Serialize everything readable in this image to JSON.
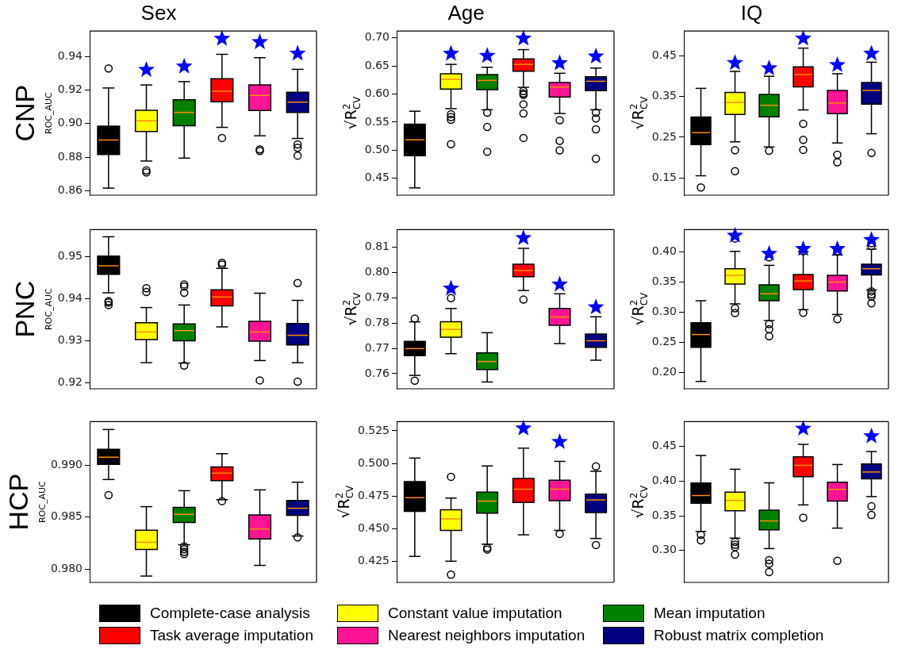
{
  "chart_data": [
    {
      "type": "box",
      "title": "Sex",
      "ylabel": "ROC_AUC",
      "annotations": [
        "CNP"
      ],
      "categories": [
        null,
        null,
        null,
        null,
        null,
        null
      ],
      "tick_labels": "y",
      "ylim": [
        0.8575,
        0.955
      ],
      "yticks": [
        {
          "value": 0.86,
          "label": "0.86"
        },
        {
          "value": 0.88,
          "label": "0.88"
        },
        {
          "value": 0.9,
          "label": "0.90"
        },
        {
          "value": 0.92,
          "label": "0.92"
        },
        {
          "value": 0.94,
          "label": "0.94"
        }
      ],
      "series": [
        {
          "type": "box",
          "color": "#000000",
          "boxes": [
            {
              "low": 0.8617,
              "q1": 0.8817,
              "median": 0.8903,
              "q3": 0.8985,
              "high": 0.9212,
              "outliers": [
                0.9328
              ]
            },
            null,
            null,
            null,
            null,
            null
          ]
        },
        {
          "type": "box",
          "color": "#ffff00",
          "boxes": [
            null,
            {
              "low": 0.8778,
              "q1": 0.8953,
              "median": 0.9017,
              "q3": 0.908,
              "high": 0.923,
              "outliers": [
                0.8722,
                0.871
              ]
            },
            null,
            null,
            null,
            null
          ]
        },
        {
          "type": "box",
          "color": "#008000",
          "boxes": [
            null,
            null,
            {
              "low": 0.8795,
              "q1": 0.8988,
              "median": 0.9067,
              "q3": 0.9142,
              "high": 0.925
            },
            null,
            null,
            null
          ]
        },
        {
          "type": "box",
          "color": "#ff0000",
          "boxes": [
            null,
            null,
            null,
            {
              "low": 0.8978,
              "q1": 0.913,
              "median": 0.9193,
              "q3": 0.9267,
              "high": 0.9412,
              "outliers": [
                0.8915
              ]
            },
            null,
            null
          ]
        },
        {
          "type": "box",
          "color": "#ff1493",
          "boxes": [
            null,
            null,
            null,
            null,
            {
              "low": 0.8928,
              "q1": 0.9078,
              "median": 0.9168,
              "q3": 0.923,
              "high": 0.9392,
              "outliers": [
                0.8847,
                0.8838
              ]
            },
            null
          ]
        },
        {
          "type": "box",
          "color": "#000080",
          "boxes": [
            null,
            null,
            null,
            null,
            null,
            {
              "low": 0.8912,
              "q1": 0.9067,
              "median": 0.9128,
              "q3": 0.9187,
              "high": 0.9323,
              "outliers": [
                0.8877,
                0.8857,
                0.881
              ]
            }
          ]
        },
        {
          "type": "scatter",
          "marker": "star",
          "color": "#0000ff",
          "values": [
            null,
            0.932,
            0.934,
            0.9505,
            0.9485,
            0.9417
          ]
        }
      ]
    },
    {
      "type": "box",
      "title": "Age",
      "ylabel": "√R$^{2}$$_{CV}$",
      "categories": [
        null,
        null,
        null,
        null,
        null,
        null
      ],
      "tick_labels": "y",
      "ylim": [
        0.42,
        0.712
      ],
      "yticks": [
        {
          "value": 0.45,
          "label": "0.45"
        },
        {
          "value": 0.5,
          "label": "0.50"
        },
        {
          "value": 0.55,
          "label": "0.55"
        },
        {
          "value": 0.6,
          "label": "0.60"
        },
        {
          "value": 0.65,
          "label": "0.65"
        },
        {
          "value": 0.7,
          "label": "0.70"
        }
      ],
      "series": [
        {
          "type": "box",
          "color": "#000000",
          "boxes": [
            {
              "low": 0.433,
              "q1": 0.4904,
              "median": 0.5186,
              "q3": 0.5465,
              "high": 0.5694
            },
            null,
            null,
            null,
            null,
            null
          ]
        },
        {
          "type": "box",
          "color": "#ffff00",
          "boxes": [
            null,
            {
              "low": 0.574,
              "q1": 0.6089,
              "median": 0.6263,
              "q3": 0.636,
              "high": 0.6528,
              "outliers": [
                0.5642,
                0.5592,
                0.5541,
                0.5106
              ]
            },
            null,
            null,
            null,
            null
          ]
        },
        {
          "type": "box",
          "color": "#008000",
          "boxes": [
            null,
            null,
            {
              "low": 0.572,
              "q1": 0.6078,
              "median": 0.6242,
              "q3": 0.6345,
              "high": 0.6477,
              "outliers": [
                0.5669,
                0.5413,
                0.4972
              ]
            },
            null,
            null,
            null
          ]
        },
        {
          "type": "box",
          "color": "#ff0000",
          "boxes": [
            null,
            null,
            null,
            {
              "low": 0.6119,
              "q1": 0.6406,
              "median": 0.6528,
              "q3": 0.6626,
              "high": 0.679,
              "outliers": [
                0.6053,
                0.6011,
                0.5986,
                0.5818,
                0.5654,
                0.5218
              ]
            },
            null,
            null
          ]
        },
        {
          "type": "box",
          "color": "#ff1493",
          "boxes": [
            null,
            null,
            null,
            null,
            {
              "low": 0.5654,
              "q1": 0.5946,
              "median": 0.6124,
              "q3": 0.6206,
              "high": 0.637,
              "outliers": [
                0.5535,
                0.5167,
                0.4999
              ]
            },
            null
          ]
        },
        {
          "type": "box",
          "color": "#000080",
          "boxes": [
            null,
            null,
            null,
            null,
            null,
            {
              "low": 0.572,
              "q1": 0.6062,
              "median": 0.6227,
              "q3": 0.6309,
              "high": 0.6462,
              "outliers": [
                0.5669,
                0.5566,
                0.5371,
                0.485
              ]
            }
          ]
        },
        {
          "type": "scatter",
          "marker": "star",
          "color": "#0000ff",
          "values": [
            null,
            0.672,
            0.668,
            0.699,
            0.655,
            0.667
          ]
        }
      ]
    },
    {
      "type": "box",
      "title": "IQ",
      "ylabel": "√R$^{2}$$_{CV}$",
      "categories": [
        null,
        null,
        null,
        null,
        null,
        null
      ],
      "tick_labels": "y",
      "ylim": [
        0.108,
        0.51
      ],
      "yticks": [
        {
          "value": 0.15,
          "label": "0.15"
        },
        {
          "value": 0.25,
          "label": "0.25"
        },
        {
          "value": 0.35,
          "label": "0.35"
        },
        {
          "value": 0.45,
          "label": "0.45"
        }
      ],
      "series": [
        {
          "type": "box",
          "color": "#000000",
          "boxes": [
            {
              "low": 0.1556,
              "q1": 0.2317,
              "median": 0.2613,
              "q3": 0.2993,
              "high": 0.3697,
              "outliers": [
                0.1268
              ]
            },
            null,
            null,
            null,
            null,
            null
          ]
        },
        {
          "type": "box",
          "color": "#ffff00",
          "boxes": [
            null,
            {
              "low": 0.2387,
              "q1": 0.3056,
              "median": 0.3352,
              "q3": 0.3599,
              "high": 0.4113,
              "outliers": [
                0.2183,
                0.1669
              ]
            },
            null,
            null,
            null,
            null
          ]
        },
        {
          "type": "box",
          "color": "#008000",
          "boxes": [
            null,
            null,
            {
              "low": 0.2261,
              "q1": 0.3,
              "median": 0.3282,
              "q3": 0.3549,
              "high": 0.3993,
              "outliers": [
                0.2169
              ]
            },
            null,
            null,
            null
          ]
        },
        {
          "type": "box",
          "color": "#ff0000",
          "boxes": [
            null,
            null,
            null,
            {
              "low": 0.3169,
              "q1": 0.3732,
              "median": 0.4035,
              "q3": 0.4225,
              "high": 0.4683,
              "outliers": [
                0.2831,
                0.2437,
                0.219
              ]
            },
            null,
            null
          ]
        },
        {
          "type": "box",
          "color": "#ff1493",
          "boxes": [
            null,
            null,
            null,
            null,
            {
              "low": 0.2359,
              "q1": 0.3077,
              "median": 0.3338,
              "q3": 0.3648,
              "high": 0.4056,
              "outliers": [
                0.207,
                0.1887
              ]
            },
            null
          ]
        },
        {
          "type": "box",
          "color": "#000080",
          "boxes": [
            null,
            null,
            null,
            null,
            null,
            {
              "low": 0.2585,
              "q1": 0.331,
              "median": 0.3648,
              "q3": 0.3838,
              "high": 0.4338,
              "outliers": [
                0.2113
              ]
            }
          ]
        },
        {
          "type": "scatter",
          "marker": "star",
          "color": "#0000ff",
          "values": [
            null,
            0.432,
            0.419,
            0.492,
            0.427,
            0.455
          ]
        }
      ]
    },
    {
      "type": "box",
      "ylabel": "ROC_AUC",
      "annotations": [
        "PNC"
      ],
      "categories": [
        null,
        null,
        null,
        null,
        null,
        null
      ],
      "tick_labels": "y",
      "ylim": [
        0.9186,
        0.9564
      ],
      "yticks": [
        {
          "value": 0.92,
          "label": "0.92"
        },
        {
          "value": 0.93,
          "label": "0.93"
        },
        {
          "value": 0.94,
          "label": "0.94"
        },
        {
          "value": 0.95,
          "label": "0.95"
        }
      ],
      "series": [
        {
          "type": "box",
          "color": "#000000",
          "boxes": [
            {
              "low": 0.9414,
              "q1": 0.9458,
              "median": 0.9478,
              "q3": 0.9501,
              "high": 0.9547,
              "outliers": [
                0.9394,
                0.9391,
                0.9385
              ]
            },
            null,
            null,
            null,
            null,
            null
          ]
        },
        {
          "type": "box",
          "color": "#ffff00",
          "boxes": [
            null,
            {
              "low": 0.9248,
              "q1": 0.9303,
              "median": 0.9321,
              "q3": 0.9343,
              "high": 0.9379,
              "outliers": [
                0.9425,
                0.9416
              ]
            },
            null,
            null,
            null,
            null
          ]
        },
        {
          "type": "box",
          "color": "#008000",
          "boxes": [
            null,
            null,
            {
              "low": 0.9247,
              "q1": 0.93,
              "median": 0.9324,
              "q3": 0.934,
              "high": 0.9385,
              "outliers": [
                0.9434,
                0.9429,
                0.9414,
                0.9241
              ]
            },
            null,
            null,
            null
          ]
        },
        {
          "type": "box",
          "color": "#ff0000",
          "boxes": [
            null,
            null,
            null,
            {
              "low": 0.9333,
              "q1": 0.9383,
              "median": 0.9404,
              "q3": 0.9421,
              "high": 0.9472,
              "outliers": [
                0.9485,
                0.9481
              ]
            },
            null,
            null
          ]
        },
        {
          "type": "box",
          "color": "#ff1493",
          "boxes": [
            null,
            null,
            null,
            null,
            {
              "low": 0.9253,
              "q1": 0.9299,
              "median": 0.9321,
              "q3": 0.9346,
              "high": 0.9413,
              "outliers": [
                0.9206
              ]
            },
            null
          ]
        },
        {
          "type": "box",
          "color": "#000080",
          "boxes": [
            null,
            null,
            null,
            null,
            null,
            {
              "low": 0.9248,
              "q1": 0.929,
              "median": 0.9313,
              "q3": 0.9341,
              "high": 0.9396,
              "outliers": [
                0.9437,
                0.9203
              ]
            }
          ]
        }
      ]
    },
    {
      "type": "box",
      "ylabel": "√R$^{2}$$_{CV}$",
      "categories": [
        null,
        null,
        null,
        null,
        null,
        null
      ],
      "tick_labels": "y",
      "ylim": [
        0.754,
        0.817
      ],
      "yticks": [
        {
          "value": 0.76,
          "label": "0.76"
        },
        {
          "value": 0.77,
          "label": "0.77"
        },
        {
          "value": 0.78,
          "label": "0.78"
        },
        {
          "value": 0.79,
          "label": "0.79"
        },
        {
          "value": 0.8,
          "label": "0.80"
        },
        {
          "value": 0.81,
          "label": "0.81"
        }
      ],
      "series": [
        {
          "type": "box",
          "color": "#000000",
          "boxes": [
            {
              "low": 0.7593,
              "q1": 0.7671,
              "median": 0.7699,
              "q3": 0.7728,
              "high": 0.7805,
              "outliers": [
                0.7818,
                0.7572
              ]
            },
            null,
            null,
            null,
            null,
            null
          ]
        },
        {
          "type": "box",
          "color": "#ffff00",
          "boxes": [
            null,
            {
              "low": 0.7679,
              "q1": 0.7744,
              "median": 0.7775,
              "q3": 0.7805,
              "high": 0.7858,
              "outliers": [
                0.7899
              ]
            },
            null,
            null,
            null,
            null
          ]
        },
        {
          "type": "box",
          "color": "#008000",
          "boxes": [
            null,
            null,
            {
              "low": 0.7567,
              "q1": 0.7616,
              "median": 0.7648,
              "q3": 0.7682,
              "high": 0.7762
            },
            null,
            null,
            null
          ]
        },
        {
          "type": "box",
          "color": "#ff0000",
          "boxes": [
            null,
            null,
            null,
            {
              "low": 0.7929,
              "q1": 0.7984,
              "median": 0.8008,
              "q3": 0.8033,
              "high": 0.8096,
              "outliers": [
                0.7893
              ]
            },
            null,
            null
          ]
        },
        {
          "type": "box",
          "color": "#ff1493",
          "boxes": [
            null,
            null,
            null,
            null,
            {
              "low": 0.7719,
              "q1": 0.7791,
              "median": 0.7824,
              "q3": 0.7858,
              "high": 0.7916
            },
            null
          ]
        },
        {
          "type": "box",
          "color": "#000080",
          "boxes": [
            null,
            null,
            null,
            null,
            null,
            {
              "low": 0.7653,
              "q1": 0.7704,
              "median": 0.773,
              "q3": 0.7757,
              "high": 0.7825
            }
          ]
        },
        {
          "type": "scatter",
          "marker": "star",
          "color": "#0000ff",
          "values": [
            null,
            0.7937,
            null,
            0.8137,
            0.7953,
            0.7863
          ]
        }
      ]
    },
    {
      "type": "box",
      "ylabel": "√R$^{2}$$_{CV}$",
      "categories": [
        null,
        null,
        null,
        null,
        null,
        null
      ],
      "tick_labels": "y",
      "ylim": [
        0.173,
        0.437
      ],
      "yticks": [
        {
          "value": 0.2,
          "label": "0.20"
        },
        {
          "value": 0.25,
          "label": "0.25"
        },
        {
          "value": 0.3,
          "label": "0.30"
        },
        {
          "value": 0.35,
          "label": "0.35"
        },
        {
          "value": 0.4,
          "label": "0.40"
        }
      ],
      "series": [
        {
          "type": "box",
          "color": "#000000",
          "boxes": [
            {
              "low": 0.1852,
              "q1": 0.2417,
              "median": 0.263,
              "q3": 0.2824,
              "high": 0.319
            },
            null,
            null,
            null,
            null,
            null
          ]
        },
        {
          "type": "box",
          "color": "#ffff00",
          "boxes": [
            null,
            {
              "low": 0.3139,
              "q1": 0.3468,
              "median": 0.3611,
              "q3": 0.3722,
              "high": 0.4009,
              "outliers": [
                0.4222,
                0.3065,
                0.2986
              ]
            },
            null,
            null,
            null,
            null
          ]
        },
        {
          "type": "box",
          "color": "#008000",
          "boxes": [
            null,
            null,
            {
              "low": 0.2861,
              "q1": 0.319,
              "median": 0.3306,
              "q3": 0.3454,
              "high": 0.3778,
              "outliers": [
                0.3912,
                0.2801,
                0.2718,
                0.2602
              ]
            },
            null,
            null,
            null
          ]
        },
        {
          "type": "box",
          "color": "#ff0000",
          "boxes": [
            null,
            null,
            null,
            {
              "low": 0.3042,
              "q1": 0.3375,
              "median": 0.3519,
              "q3": 0.3625,
              "high": 0.4005,
              "outliers": [
                0.4014,
                0.2991
              ]
            },
            null,
            null
          ]
        },
        {
          "type": "box",
          "color": "#ff1493",
          "boxes": [
            null,
            null,
            null,
            null,
            {
              "low": 0.2963,
              "q1": 0.3352,
              "median": 0.35,
              "q3": 0.3611,
              "high": 0.3949,
              "outliers": [
                0.4014,
                0.2884
              ]
            },
            null
          ]
        },
        {
          "type": "box",
          "color": "#000080",
          "boxes": [
            null,
            null,
            null,
            null,
            null,
            {
              "low": 0.337,
              "q1": 0.362,
              "median": 0.3722,
              "q3": 0.3796,
              "high": 0.4046,
              "outliers": [
                0.4144,
                0.4097,
                0.3347,
                0.3296,
                0.3259,
                0.3148
              ]
            }
          ]
        },
        {
          "type": "scatter",
          "marker": "star",
          "color": "#0000ff",
          "values": [
            null,
            0.427,
            0.397,
            0.405,
            0.405,
            0.42
          ]
        }
      ]
    },
    {
      "type": "box",
      "ylabel": "ROC_AUC",
      "annotations": [
        "HCP"
      ],
      "categories": [
        null,
        null,
        null,
        null,
        null,
        null
      ],
      "tick_labels": "y",
      "ylim": [
        0.9787,
        0.9942
      ],
      "yticks": [
        {
          "value": 0.98,
          "label": "0.980"
        },
        {
          "value": 0.985,
          "label": "0.985"
        },
        {
          "value": 0.99,
          "label": "0.990"
        }
      ],
      "series": [
        {
          "type": "box",
          "color": "#000000",
          "boxes": [
            {
              "low": 0.98862,
              "q1": 0.99008,
              "median": 0.99077,
              "q3": 0.99153,
              "high": 0.99344,
              "outliers": [
                0.98712
              ]
            },
            null,
            null,
            null,
            null,
            null
          ]
        },
        {
          "type": "box",
          "color": "#ffff00",
          "boxes": [
            null,
            {
              "low": 0.97931,
              "q1": 0.98188,
              "median": 0.98257,
              "q3": 0.98373,
              "high": 0.986
            },
            null,
            null,
            null,
            null
          ]
        },
        {
          "type": "box",
          "color": "#008000",
          "boxes": [
            null,
            null,
            {
              "low": 0.98233,
              "q1": 0.98447,
              "median": 0.98526,
              "q3": 0.98593,
              "high": 0.98754,
              "outliers": [
                0.98217,
                0.9819,
                0.98164,
                0.98143
              ]
            },
            null,
            null,
            null
          ]
        },
        {
          "type": "box",
          "color": "#ff0000",
          "boxes": [
            null,
            null,
            null,
            {
              "low": 0.98667,
              "q1": 0.98852,
              "median": 0.98923,
              "q3": 0.98984,
              "high": 0.99111,
              "outliers": [
                0.98653
              ]
            },
            null,
            null
          ]
        },
        {
          "type": "box",
          "color": "#ff1493",
          "boxes": [
            null,
            null,
            null,
            null,
            {
              "low": 0.98034,
              "q1": 0.98288,
              "median": 0.98384,
              "q3": 0.98521,
              "high": 0.98762
            },
            null
          ]
        },
        {
          "type": "box",
          "color": "#000080",
          "boxes": [
            null,
            null,
            null,
            null,
            null,
            {
              "low": 0.98317,
              "q1": 0.98516,
              "median": 0.98585,
              "q3": 0.98659,
              "high": 0.98836,
              "outliers": [
                0.98304
              ]
            }
          ]
        }
      ]
    },
    {
      "type": "box",
      "ylabel": "√R$^{2}$$_{CV}$",
      "categories": [
        null,
        null,
        null,
        null,
        null,
        null
      ],
      "tick_labels": "y",
      "ylim": [
        0.409,
        0.532
      ],
      "yticks": [
        {
          "value": 0.425,
          "label": "0.425"
        },
        {
          "value": 0.45,
          "label": "0.450"
        },
        {
          "value": 0.475,
          "label": "0.475"
        },
        {
          "value": 0.5,
          "label": "0.500"
        },
        {
          "value": 0.525,
          "label": "0.525"
        }
      ],
      "series": [
        {
          "type": "box",
          "color": "#000000",
          "boxes": [
            {
              "low": 0.4289,
              "q1": 0.4634,
              "median": 0.4738,
              "q3": 0.4861,
              "high": 0.5041
            },
            null,
            null,
            null,
            null,
            null
          ]
        },
        {
          "type": "box",
          "color": "#ffff00",
          "boxes": [
            null,
            {
              "low": 0.4252,
              "q1": 0.4487,
              "median": 0.4576,
              "q3": 0.4645,
              "high": 0.4735,
              "outliers": [
                0.4898,
                0.4149
              ]
            },
            null,
            null,
            null,
            null
          ]
        },
        {
          "type": "box",
          "color": "#008000",
          "boxes": [
            null,
            null,
            {
              "low": 0.4382,
              "q1": 0.4619,
              "median": 0.4712,
              "q3": 0.4781,
              "high": 0.4981,
              "outliers": [
                0.4354,
                0.4341
              ]
            },
            null,
            null,
            null
          ]
        },
        {
          "type": "box",
          "color": "#ff0000",
          "boxes": [
            null,
            null,
            null,
            {
              "low": 0.4454,
              "q1": 0.4701,
              "median": 0.4803,
              "q3": 0.4885,
              "high": 0.5117
            },
            null,
            null
          ]
        },
        {
          "type": "box",
          "color": "#ff1493",
          "boxes": [
            null,
            null,
            null,
            null,
            {
              "low": 0.4488,
              "q1": 0.4716,
              "median": 0.4803,
              "q3": 0.4872,
              "high": 0.5016,
              "outliers": [
                0.4461
              ]
            },
            null
          ]
        },
        {
          "type": "box",
          "color": "#000080",
          "boxes": [
            null,
            null,
            null,
            null,
            null,
            {
              "low": 0.4426,
              "q1": 0.4625,
              "median": 0.4721,
              "q3": 0.4766,
              "high": 0.494,
              "outliers": [
                0.4978,
                0.4376
              ]
            }
          ]
        },
        {
          "type": "scatter",
          "marker": "star",
          "color": "#0000ff",
          "values": [
            null,
            null,
            null,
            0.5269,
            0.5165,
            null
          ]
        }
      ]
    },
    {
      "type": "box",
      "ylabel": "√R$^{2}$$_{CV}$",
      "legend": "bottom",
      "categories": [
        null,
        null,
        null,
        null,
        null,
        null
      ],
      "tick_labels": "y",
      "ylim": [
        0.254,
        0.486
      ],
      "yticks": [
        {
          "value": 0.3,
          "label": "0.30"
        },
        {
          "value": 0.35,
          "label": "0.35"
        },
        {
          "value": 0.4,
          "label": "0.40"
        },
        {
          "value": 0.45,
          "label": "0.45"
        }
      ],
      "series": [
        {
          "type": "box",
          "name": "Complete-case analysis",
          "color": "#000000",
          "boxes": [
            {
              "low": 0.3275,
              "q1": 0.3682,
              "median": 0.3794,
              "q3": 0.3973,
              "high": 0.4372,
              "outliers": [
                0.3227,
                0.3147
              ]
            },
            null,
            null,
            null,
            null,
            null
          ]
        },
        {
          "type": "box",
          "name": "Constant value imputation",
          "color": "#ffff00",
          "boxes": [
            null,
            {
              "low": 0.3179,
              "q1": 0.3574,
              "median": 0.3722,
              "q3": 0.3842,
              "high": 0.4173,
              "outliers": [
                0.3123,
                0.3083,
                0.3051,
                0.294
              ]
            },
            null,
            null,
            null,
            null
          ]
        },
        {
          "type": "box",
          "name": "Mean imputation",
          "color": "#008000",
          "boxes": [
            null,
            null,
            {
              "low": 0.3028,
              "q1": 0.3299,
              "median": 0.3427,
              "q3": 0.3582,
              "high": 0.3977,
              "outliers": [
                0.286,
                0.2808,
                0.2688
              ]
            },
            null,
            null,
            null
          ]
        },
        {
          "type": "box",
          "name": "Task average imputation",
          "color": "#ff0000",
          "boxes": [
            null,
            null,
            null,
            {
              "low": 0.3658,
              "q1": 0.4065,
              "median": 0.4229,
              "q3": 0.4352,
              "high": 0.4532,
              "outliers": [
                0.3474
              ]
            },
            null,
            null
          ]
        },
        {
          "type": "box",
          "name": "Nearest neighbors imputation",
          "color": "#ff1493",
          "boxes": [
            null,
            null,
            null,
            null,
            {
              "low": 0.3323,
              "q1": 0.3714,
              "median": 0.3882,
              "q3": 0.3985,
              "high": 0.4241,
              "outliers": [
                0.2852
              ]
            },
            null
          ]
        },
        {
          "type": "box",
          "name": "Robust matrix completion",
          "color": "#000080",
          "boxes": [
            null,
            null,
            null,
            null,
            null,
            {
              "low": 0.3778,
              "q1": 0.4033,
              "median": 0.4133,
              "q3": 0.4249,
              "high": 0.4428,
              "outliers": [
                0.3638,
                0.3514
              ]
            }
          ]
        },
        {
          "type": "scatter",
          "marker": "star",
          "color": "#0000ff",
          "values": [
            null,
            null,
            null,
            0.476,
            null,
            0.465
          ]
        }
      ]
    }
  ]
}
